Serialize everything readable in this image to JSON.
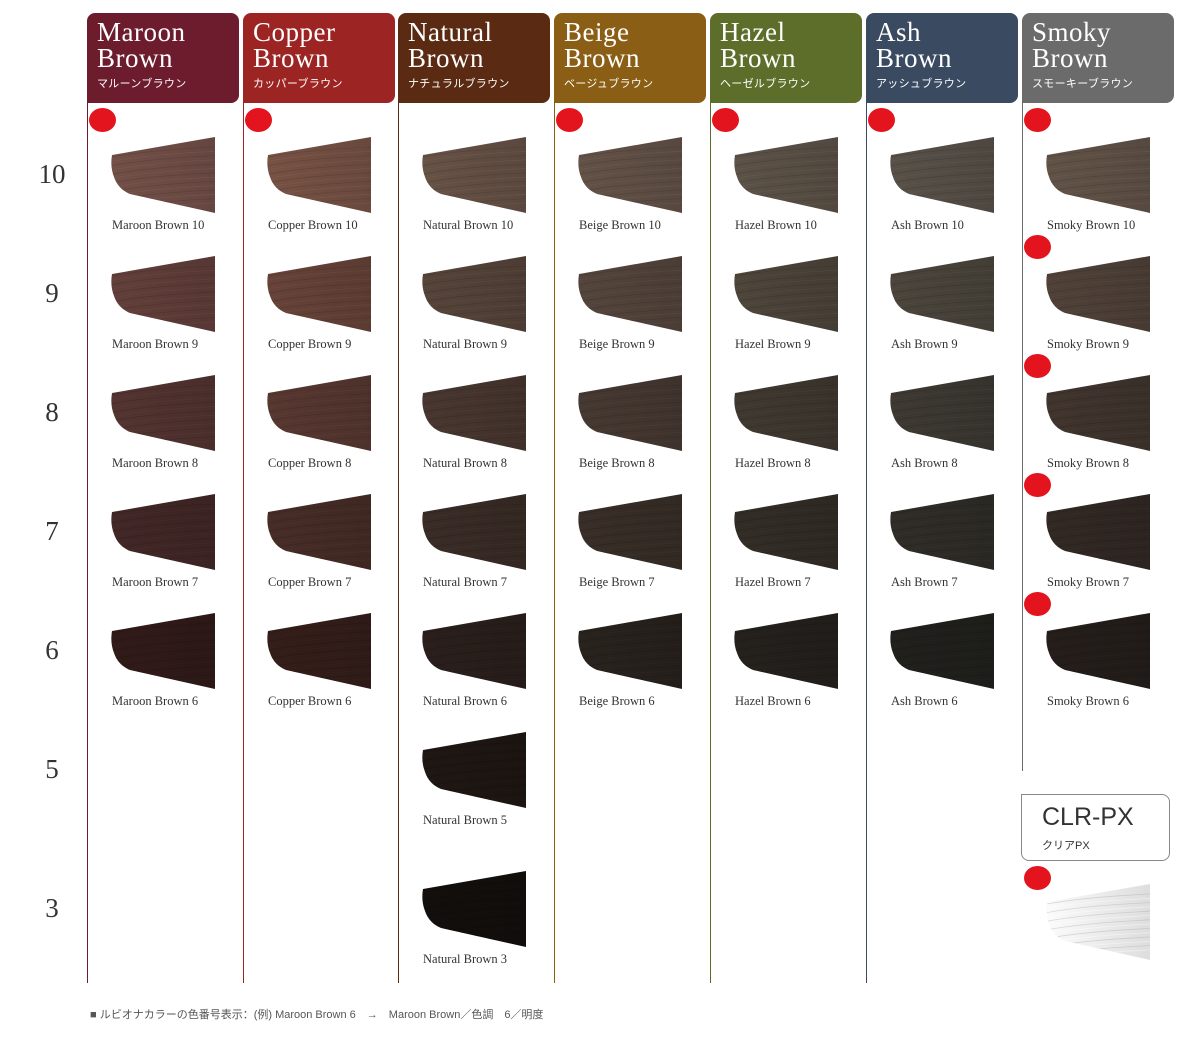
{
  "levels": [
    "10",
    "9",
    "8",
    "7",
    "6",
    "5",
    "3"
  ],
  "columns": [
    {
      "name_line1": "Maroon",
      "name_line2": "Brown",
      "kana": "マルーンブラウン",
      "header_color": "#6c1c2d",
      "dot_on_first": true,
      "swatches": [
        {
          "label": "Maroon Brown 10",
          "color": "#6a4a43",
          "level": "10"
        },
        {
          "label": "Maroon Brown 9",
          "color": "#5b3a36",
          "level": "9"
        },
        {
          "label": "Maroon Brown 8",
          "color": "#4d302d",
          "level": "8"
        },
        {
          "label": "Maroon Brown 7",
          "color": "#3d2524",
          "level": "7"
        },
        {
          "label": "Maroon Brown 6",
          "color": "#2d1917",
          "level": "6"
        }
      ]
    },
    {
      "name_line1": "Copper",
      "name_line2": "Brown",
      "kana": "カッパーブラウン",
      "header_color": "#9c2422",
      "dot_on_first": true,
      "swatches": [
        {
          "label": "Copper Brown 10",
          "color": "#6e4c40",
          "level": "10"
        },
        {
          "label": "Copper Brown 9",
          "color": "#5f3e35",
          "level": "9"
        },
        {
          "label": "Copper Brown 8",
          "color": "#51342d",
          "level": "8"
        },
        {
          "label": "Copper Brown 7",
          "color": "#422a24",
          "level": "7"
        },
        {
          "label": "Copper Brown 6",
          "color": "#301c18",
          "level": "6"
        }
      ]
    },
    {
      "name_line1": "Natural",
      "name_line2": "Brown",
      "kana": "ナチュラルブラウン",
      "header_color": "#5a2a12",
      "dot_on_first": false,
      "swatches": [
        {
          "label": "Natural Brown 10",
          "color": "#5f4c41",
          "level": "10"
        },
        {
          "label": "Natural Brown 9",
          "color": "#503f36",
          "level": "9"
        },
        {
          "label": "Natural Brown 8",
          "color": "#43332c",
          "level": "8"
        },
        {
          "label": "Natural Brown 7",
          "color": "#362924",
          "level": "7"
        },
        {
          "label": "Natural Brown 6",
          "color": "#271d1a",
          "level": "6"
        },
        {
          "label": "Natural Brown 5",
          "color": "#1c1512",
          "level": "5"
        },
        {
          "label": "Natural Brown 3",
          "color": "#120e0c",
          "level": "3"
        }
      ]
    },
    {
      "name_line1": "Beige",
      "name_line2": "Brown",
      "kana": "ベージュブラウン",
      "header_color": "#8a5e14",
      "dot_on_first": true,
      "swatches": [
        {
          "label": "Beige Brown 10",
          "color": "#5c4c42",
          "level": "10"
        },
        {
          "label": "Beige Brown 9",
          "color": "#4e4038",
          "level": "9"
        },
        {
          "label": "Beige Brown 8",
          "color": "#41352e",
          "level": "8"
        },
        {
          "label": "Beige Brown 7",
          "color": "#352b25",
          "level": "7"
        },
        {
          "label": "Beige Brown 6",
          "color": "#26201c",
          "level": "6"
        }
      ]
    },
    {
      "name_line1": "Hazel",
      "name_line2": "Brown",
      "kana": "ヘーゼルブラウン",
      "header_color": "#5c6e2a",
      "dot_on_first": true,
      "swatches": [
        {
          "label": "Hazel Brown 10",
          "color": "#554c42",
          "level": "10"
        },
        {
          "label": "Hazel Brown 9",
          "color": "#484037",
          "level": "9"
        },
        {
          "label": "Hazel Brown 8",
          "color": "#3b352d",
          "level": "8"
        },
        {
          "label": "Hazel Brown 7",
          "color": "#2f2a24",
          "level": "7"
        },
        {
          "label": "Hazel Brown 6",
          "color": "#221f1b",
          "level": "6"
        }
      ]
    },
    {
      "name_line1": "Ash",
      "name_line2": "Brown",
      "kana": "アッシュブラウン",
      "header_color": "#3a4a60",
      "dot_on_first": true,
      "swatches": [
        {
          "label": "Ash Brown 10",
          "color": "#514b43",
          "level": "10"
        },
        {
          "label": "Ash Brown 9",
          "color": "#454038",
          "level": "9"
        },
        {
          "label": "Ash Brown 8",
          "color": "#39352f",
          "level": "8"
        },
        {
          "label": "Ash Brown 7",
          "color": "#2c2a25",
          "level": "7"
        },
        {
          "label": "Ash Brown 6",
          "color": "#1f1e1b",
          "level": "6"
        }
      ]
    },
    {
      "name_line1": "Smoky",
      "name_line2": "Brown",
      "kana": "スモーキーブラウン",
      "header_color": "#6b6b6b",
      "dot_on_first": true,
      "dot_on_all": true,
      "swatches": [
        {
          "label": "Smoky Brown 10",
          "color": "#5b4d42",
          "level": "10"
        },
        {
          "label": "Smoky Brown 9",
          "color": "#4a3d35",
          "level": "9"
        },
        {
          "label": "Smoky Brown 8",
          "color": "#3c312b",
          "level": "8"
        },
        {
          "label": "Smoky Brown 7",
          "color": "#2e2622",
          "level": "7"
        },
        {
          "label": "Smoky Brown 6",
          "color": "#221c19",
          "level": "6"
        }
      ]
    }
  ],
  "clear": {
    "title": "CLR-PX",
    "kana": "クリアPX",
    "color": "#e9e9ea"
  },
  "footnote": "■ ルビオナカラーの色番号表示：(例) Maroon Brown 6　→　Maroon Brown／色調　6／明度"
}
